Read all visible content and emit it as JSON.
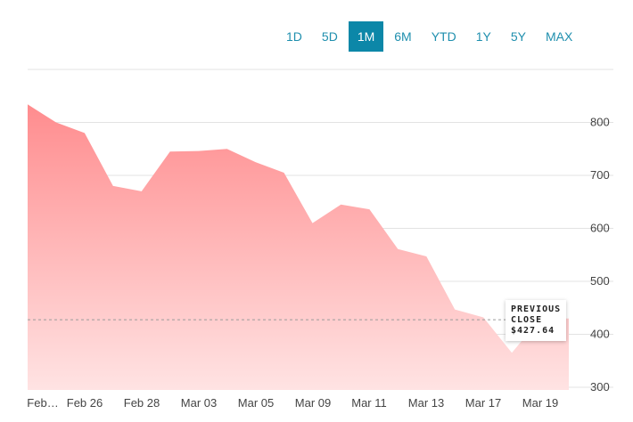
{
  "range_buttons": [
    {
      "label": "1D",
      "active": false
    },
    {
      "label": "5D",
      "active": false
    },
    {
      "label": "1M",
      "active": true
    },
    {
      "label": "6M",
      "active": false
    },
    {
      "label": "YTD",
      "active": false
    },
    {
      "label": "1Y",
      "active": false
    },
    {
      "label": "5Y",
      "active": false
    },
    {
      "label": "MAX",
      "active": false
    }
  ],
  "previous_close": {
    "line1": "PREVIOUS",
    "line2": "CLOSE",
    "value_text": "$427.64"
  },
  "colors": {
    "accent": "#0c87a8",
    "area_top": "#ff8c8e",
    "area_bottom": "#ffe3e3",
    "grid": "#e3e3e3"
  },
  "chart_data": {
    "type": "area",
    "x_tick_labels": [
      "Feb…",
      "Feb 26",
      "Feb 28",
      "Mar 03",
      "Mar 05",
      "Mar 09",
      "Mar 11",
      "Mar 13",
      "Mar 17",
      "Mar 19"
    ],
    "y_tick_labels": [
      "800",
      "700",
      "600",
      "500",
      "400",
      "300"
    ],
    "y_ticks": [
      800,
      700,
      600,
      500,
      400,
      300
    ],
    "ylim": [
      295,
      900
    ],
    "previous_close": 427.64,
    "values": [
      834,
      800,
      780,
      680,
      670,
      745,
      746,
      750,
      725,
      705,
      610,
      645,
      636,
      561,
      547,
      447,
      432,
      365,
      430,
      430
    ],
    "grid": true
  }
}
